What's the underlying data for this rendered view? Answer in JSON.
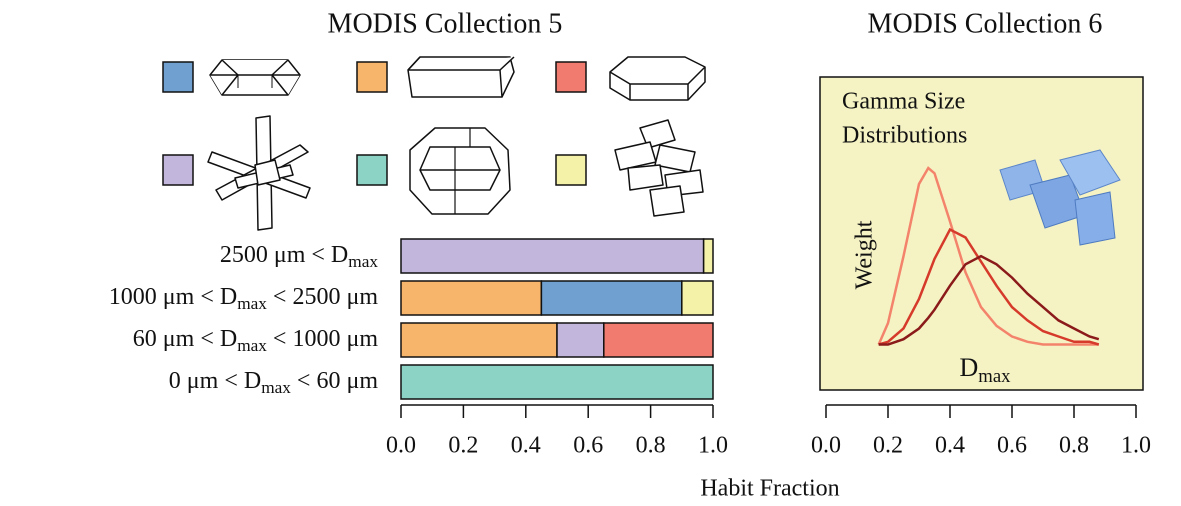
{
  "chart_data": [
    {
      "type": "stacked-bar-horizontal",
      "title": "MODIS Collection 5",
      "subscript": "max",
      "categories": [
        "2500 μm < Dmax",
        "1000 μm < Dmax < 2500 μm",
        "60 μm < Dmax < 1000 μm",
        "0 μm < Dmax < 60 μm"
      ],
      "series": [
        {
          "color": "#f7b56b",
          "values": [
            0,
            0.45,
            0.5,
            0
          ]
        },
        {
          "color": "#c2b6dc",
          "values": [
            0.97,
            0,
            0.15,
            0
          ]
        },
        {
          "color": "#6fa0cf",
          "values": [
            0,
            0.45,
            0,
            0
          ]
        },
        {
          "color": "#f27b6f",
          "values": [
            0,
            0,
            0.35,
            0
          ]
        },
        {
          "color": "#8dd3c5",
          "values": [
            0,
            0,
            0,
            1.0
          ]
        },
        {
          "color": "#f4f2a8",
          "values": [
            0.03,
            0.1,
            0,
            0
          ]
        }
      ],
      "xlim": [
        0,
        1
      ],
      "xticks": [
        {
          "value": 0,
          "label": "0.0"
        },
        0.2,
        0.4,
        0.6,
        0.8,
        {
          "value": 1,
          "label": "1.0"
        }
      ],
      "x_label": "Habit Fraction"
    },
    {
      "type": "line",
      "title": "MODIS Collection 6",
      "subscript": "max",
      "annotation_lines": [
        "Gamma Size",
        "Distributions"
      ],
      "y_label": "Weight",
      "x_label": "Dmax",
      "background": "#f5f3c4",
      "x": [
        0.17,
        0.2,
        0.25,
        0.3,
        0.33,
        0.35,
        0.4,
        0.45,
        0.5,
        0.55,
        0.6,
        0.65,
        0.7,
        0.75,
        0.8,
        0.85,
        0.88
      ],
      "series": [
        {
          "color": "#f4836b",
          "values": [
            0,
            0.08,
            0.33,
            0.6,
            0.66,
            0.64,
            0.46,
            0.27,
            0.14,
            0.07,
            0.03,
            0.01,
            0,
            0,
            0,
            0,
            0
          ]
        },
        {
          "color": "#d63a2a",
          "values": [
            0,
            0.01,
            0.06,
            0.17,
            0.26,
            0.32,
            0.43,
            0.4,
            0.31,
            0.22,
            0.14,
            0.09,
            0.05,
            0.03,
            0.01,
            0.01,
            0
          ]
        },
        {
          "color": "#8b1a1a",
          "values": [
            0,
            0,
            0.02,
            0.06,
            0.1,
            0.13,
            0.22,
            0.3,
            0.33,
            0.3,
            0.25,
            0.19,
            0.14,
            0.09,
            0.06,
            0.03,
            0.02
          ]
        }
      ],
      "xlim": [
        0,
        1
      ],
      "ylim": [
        -0.17,
        1
      ],
      "xticks": [
        {
          "value": 0,
          "label": "0.0"
        },
        0.2,
        0.4,
        0.6,
        0.8,
        {
          "value": 1,
          "label": "1.0"
        }
      ]
    }
  ]
}
